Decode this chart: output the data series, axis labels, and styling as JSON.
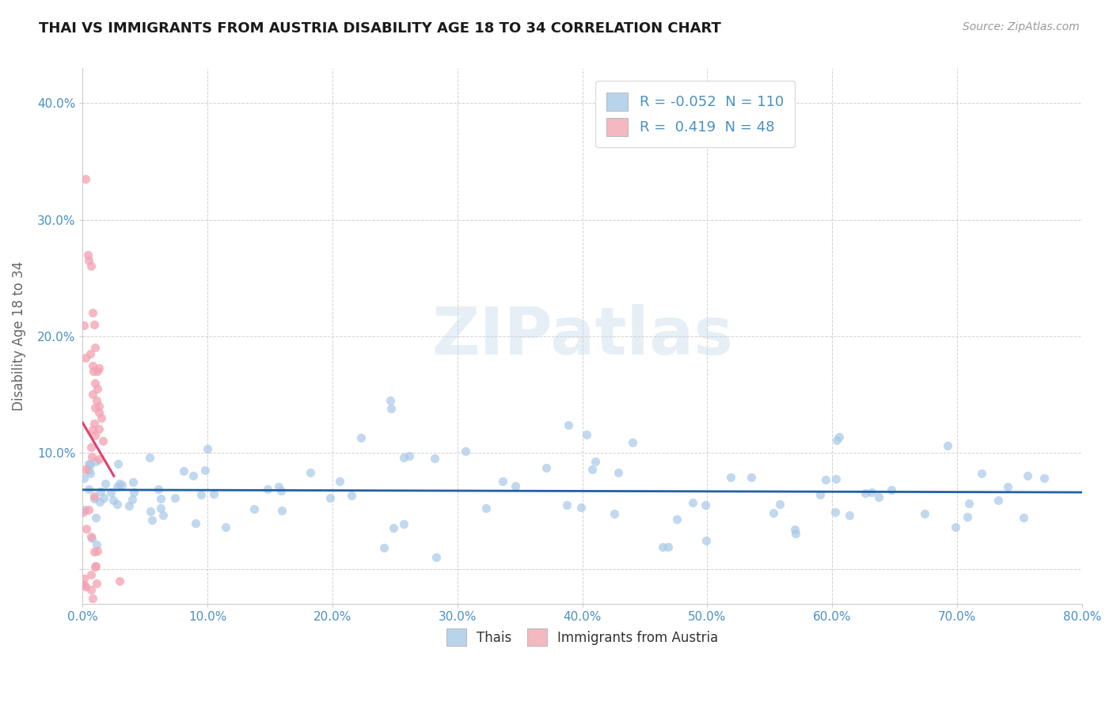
{
  "title": "THAI VS IMMIGRANTS FROM AUSTRIA DISABILITY AGE 18 TO 34 CORRELATION CHART",
  "source": "Source: ZipAtlas.com",
  "ylabel": "Disability Age 18 to 34",
  "watermark": "ZIPatlas",
  "thai_R": -0.052,
  "thai_N": 110,
  "austria_R": 0.419,
  "austria_N": 48,
  "thai_scatter_color": "#a8c8e8",
  "austria_scatter_color": "#f4a0b0",
  "thai_line_color": "#2060a8",
  "austria_line_color": "#e04070",
  "thai_legend_color": "#b8d4ed",
  "austria_legend_color": "#f5b8c0",
  "background_color": "#ffffff",
  "grid_color": "#cccccc",
  "title_color": "#1a1a1a",
  "axis_tick_color": "#4a90c4",
  "xlim": [
    0.0,
    0.8
  ],
  "ylim": [
    -0.03,
    0.43
  ],
  "xticks": [
    0.0,
    0.1,
    0.2,
    0.3,
    0.4,
    0.5,
    0.6,
    0.7,
    0.8
  ],
  "yticks": [
    0.0,
    0.1,
    0.2,
    0.3,
    0.4
  ]
}
